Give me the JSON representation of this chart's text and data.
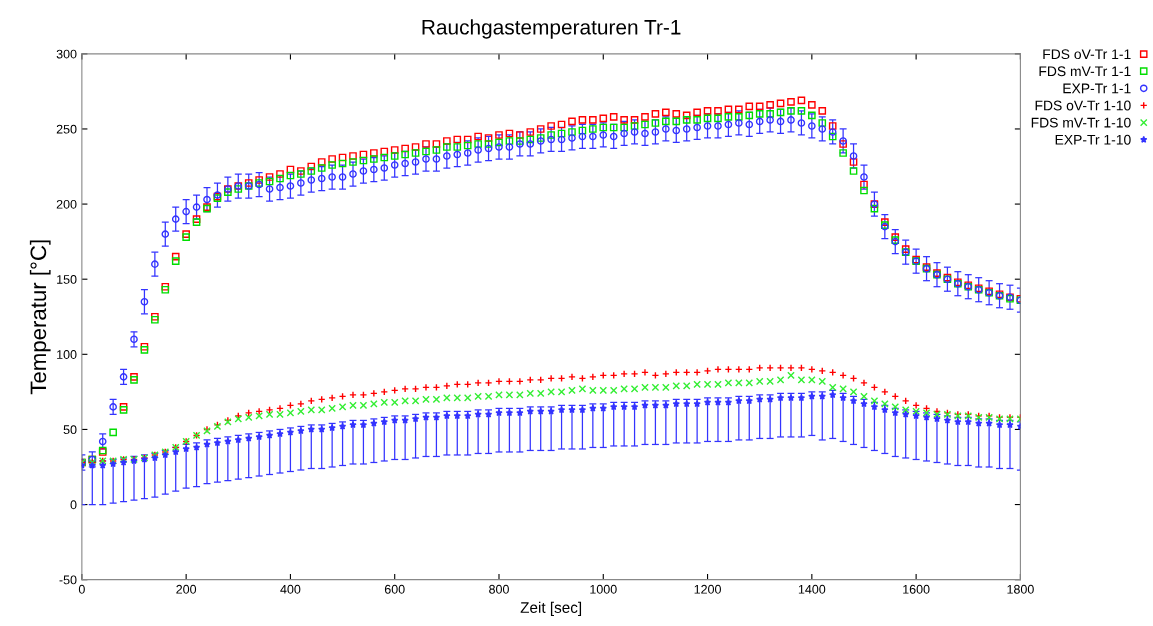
{
  "chart_data": {
    "type": "scatter",
    "title": "Rauchgastemperaturen Tr-1",
    "xlabel": "Zeit [sec]",
    "ylabel": "Temperatur [°C]",
    "x": [
      0,
      20,
      40,
      60,
      80,
      100,
      120,
      140,
      160,
      180,
      200,
      220,
      240,
      260,
      280,
      300,
      320,
      340,
      360,
      380,
      400,
      420,
      440,
      460,
      480,
      500,
      520,
      540,
      560,
      580,
      600,
      620,
      640,
      660,
      680,
      700,
      720,
      740,
      760,
      780,
      800,
      820,
      840,
      860,
      880,
      900,
      920,
      940,
      960,
      980,
      1000,
      1020,
      1040,
      1060,
      1080,
      1100,
      1120,
      1140,
      1160,
      1180,
      1200,
      1220,
      1240,
      1260,
      1280,
      1300,
      1320,
      1340,
      1360,
      1380,
      1400,
      1420,
      1440,
      1460,
      1480,
      1500,
      1520,
      1540,
      1560,
      1580,
      1600,
      1620,
      1640,
      1660,
      1680,
      1700,
      1720,
      1740,
      1760,
      1780,
      1800
    ],
    "xlim": [
      0,
      1800
    ],
    "xticks": [
      0,
      200,
      400,
      600,
      800,
      1000,
      1200,
      1400,
      1600,
      1800
    ],
    "ylim": [
      -50,
      300
    ],
    "yticks": [
      -50,
      0,
      50,
      100,
      150,
      200,
      250,
      300
    ],
    "grid": false,
    "legend": "top right",
    "series": [
      {
        "name": "FDS oV-Tr 1-1",
        "color": "#ff0000",
        "marker": "square",
        "values": [
          28,
          30,
          35,
          null,
          65,
          85,
          105,
          125,
          145,
          165,
          180,
          190,
          198,
          205,
          210,
          212,
          214,
          216,
          218,
          220,
          223,
          222,
          225,
          228,
          230,
          231,
          232,
          233,
          234,
          235,
          236,
          237,
          238,
          240,
          240,
          242,
          243,
          243,
          245,
          244,
          246,
          247,
          246,
          248,
          250,
          252,
          253,
          255,
          256,
          256,
          257,
          258,
          256,
          256,
          258,
          260,
          261,
          260,
          259,
          261,
          262,
          262,
          263,
          263,
          265,
          265,
          266,
          267,
          268,
          269,
          266,
          262,
          252,
          240,
          228,
          213,
          200,
          188,
          178,
          170,
          163,
          158,
          154,
          151,
          148,
          146,
          144,
          142,
          140,
          138,
          137
        ]
      },
      {
        "name": "FDS mV-Tr 1-1",
        "color": "#00dd00",
        "marker": "square",
        "values": [
          28,
          30,
          36,
          48,
          63,
          83,
          103,
          123,
          143,
          162,
          178,
          188,
          197,
          204,
          208,
          210,
          212,
          214,
          215,
          217,
          219,
          220,
          222,
          224,
          226,
          227,
          228,
          229,
          230,
          231,
          232,
          233,
          234,
          235,
          236,
          238,
          238,
          239,
          240,
          240,
          241,
          242,
          242,
          243,
          244,
          246,
          247,
          248,
          249,
          250,
          251,
          251,
          251,
          252,
          253,
          254,
          255,
          255,
          256,
          256,
          257,
          257,
          258,
          258,
          259,
          260,
          260,
          261,
          262,
          262,
          259,
          254,
          245,
          234,
          222,
          209,
          197,
          186,
          176,
          168,
          162,
          157,
          153,
          150,
          147,
          145,
          143,
          141,
          139,
          137,
          136
        ]
      },
      {
        "name": "EXP-Tr 1-1",
        "color": "#3333ff",
        "marker": "circle",
        "values": [
          28,
          30,
          42,
          65,
          85,
          110,
          135,
          160,
          180,
          190,
          195,
          198,
          203,
          206,
          210,
          212,
          212,
          213,
          210,
          211,
          212,
          214,
          216,
          217,
          218,
          218,
          220,
          222,
          223,
          224,
          226,
          227,
          228,
          230,
          230,
          232,
          233,
          234,
          236,
          237,
          238,
          238,
          240,
          240,
          242,
          243,
          243,
          244,
          245,
          245,
          246,
          245,
          247,
          248,
          247,
          248,
          250,
          249,
          250,
          251,
          252,
          252,
          253,
          254,
          253,
          255,
          256,
          255,
          256,
          254,
          252,
          250,
          248,
          242,
          232,
          218,
          200,
          185,
          175,
          168,
          162,
          157,
          153,
          150,
          147,
          145,
          143,
          141,
          139,
          138,
          136
        ],
        "errors": [
          5,
          5,
          5,
          5,
          5,
          5,
          8,
          8,
          8,
          8,
          8,
          8,
          8,
          8,
          8,
          8,
          8,
          8,
          8,
          8,
          8,
          8,
          8,
          8,
          8,
          8,
          8,
          8,
          8,
          8,
          8,
          8,
          8,
          8,
          8,
          8,
          8,
          8,
          8,
          8,
          8,
          8,
          8,
          8,
          8,
          8,
          8,
          8,
          8,
          8,
          8,
          8,
          8,
          8,
          8,
          8,
          8,
          8,
          8,
          8,
          8,
          8,
          8,
          8,
          8,
          8,
          8,
          8,
          8,
          8,
          8,
          8,
          8,
          8,
          8,
          8,
          8,
          8,
          8,
          8,
          8,
          8,
          8,
          8,
          8,
          8,
          8,
          8,
          8,
          8,
          8
        ]
      },
      {
        "name": "FDS oV-Tr 1-10",
        "color": "#ff0000",
        "marker": "plus",
        "values": [
          28,
          28,
          29,
          29,
          30,
          30,
          31,
          33,
          35,
          38,
          42,
          46,
          50,
          53,
          56,
          59,
          61,
          62,
          63,
          64,
          66,
          67,
          69,
          70,
          71,
          72,
          73,
          73,
          74,
          75,
          76,
          77,
          77,
          78,
          78,
          79,
          80,
          80,
          81,
          81,
          82,
          82,
          82,
          83,
          83,
          84,
          84,
          85,
          84,
          85,
          86,
          86,
          87,
          87,
          88,
          86,
          87,
          88,
          88,
          88,
          89,
          90,
          90,
          90,
          90,
          91,
          91,
          91,
          91,
          91,
          90,
          89,
          88,
          86,
          84,
          81,
          78,
          75,
          72,
          69,
          66,
          64,
          62,
          61,
          60,
          60,
          59,
          59,
          58,
          58,
          58
        ]
      },
      {
        "name": "FDS mV-Tr 1-10",
        "color": "#33ee33",
        "marker": "cross",
        "values": [
          28,
          28,
          29,
          29,
          30,
          30,
          31,
          33,
          35,
          38,
          42,
          46,
          49,
          52,
          55,
          57,
          58,
          59,
          60,
          60,
          61,
          62,
          63,
          63,
          64,
          65,
          66,
          66,
          67,
          68,
          68,
          69,
          69,
          70,
          70,
          71,
          71,
          71,
          72,
          72,
          73,
          73,
          73,
          74,
          74,
          75,
          75,
          76,
          77,
          76,
          76,
          76,
          77,
          77,
          78,
          78,
          78,
          79,
          79,
          80,
          80,
          80,
          81,
          81,
          81,
          82,
          82,
          83,
          86,
          83,
          83,
          82,
          78,
          77,
          75,
          72,
          69,
          67,
          65,
          63,
          62,
          61,
          60,
          60,
          59,
          59,
          58,
          58,
          57,
          57,
          57
        ]
      },
      {
        "name": "EXP-Tr 1-10",
        "color": "#3333ff",
        "marker": "star",
        "values": [
          26,
          26,
          26,
          27,
          28,
          29,
          30,
          31,
          33,
          35,
          37,
          38,
          40,
          41,
          42,
          43,
          44,
          45,
          46,
          47,
          48,
          49,
          50,
          50,
          51,
          52,
          53,
          53,
          54,
          55,
          56,
          56,
          57,
          58,
          58,
          59,
          59,
          59,
          60,
          60,
          61,
          61,
          61,
          62,
          62,
          62,
          63,
          63,
          63,
          64,
          64,
          65,
          65,
          65,
          66,
          66,
          66,
          67,
          67,
          67,
          68,
          68,
          68,
          69,
          69,
          70,
          70,
          71,
          71,
          71,
          72,
          72,
          73,
          71,
          69,
          67,
          65,
          63,
          61,
          60,
          59,
          58,
          57,
          56,
          55,
          55,
          54,
          54,
          53,
          53,
          52
        ],
        "errors": [
          [
            0,
            29
          ],
          [
            0,
            29
          ],
          [
            0,
            29
          ],
          [
            1,
            30
          ],
          [
            2,
            31
          ],
          [
            3,
            32
          ],
          [
            4,
            33
          ],
          [
            5,
            34
          ],
          [
            7,
            36
          ],
          [
            9,
            38
          ],
          [
            11,
            40
          ],
          [
            12,
            41
          ],
          [
            14,
            43
          ],
          [
            15,
            44
          ],
          [
            16,
            45
          ],
          [
            17,
            46
          ],
          [
            18,
            47
          ],
          [
            19,
            48
          ],
          [
            20,
            49
          ],
          [
            21,
            50
          ],
          [
            22,
            51
          ],
          [
            23,
            52
          ],
          [
            24,
            53
          ],
          [
            24,
            53
          ],
          [
            25,
            54
          ],
          [
            26,
            55
          ],
          [
            27,
            56
          ],
          [
            27,
            56
          ],
          [
            28,
            57
          ],
          [
            29,
            58
          ],
          [
            30,
            59
          ],
          [
            30,
            59
          ],
          [
            31,
            60
          ],
          [
            32,
            61
          ],
          [
            32,
            61
          ],
          [
            33,
            62
          ],
          [
            33,
            62
          ],
          [
            33,
            62
          ],
          [
            34,
            63
          ],
          [
            34,
            63
          ],
          [
            35,
            64
          ],
          [
            35,
            64
          ],
          [
            35,
            64
          ],
          [
            36,
            65
          ],
          [
            36,
            65
          ],
          [
            36,
            65
          ],
          [
            37,
            66
          ],
          [
            37,
            66
          ],
          [
            37,
            66
          ],
          [
            38,
            67
          ],
          [
            38,
            67
          ],
          [
            39,
            68
          ],
          [
            39,
            68
          ],
          [
            39,
            68
          ],
          [
            40,
            69
          ],
          [
            40,
            69
          ],
          [
            40,
            69
          ],
          [
            41,
            70
          ],
          [
            41,
            70
          ],
          [
            41,
            70
          ],
          [
            42,
            71
          ],
          [
            42,
            71
          ],
          [
            42,
            71
          ],
          [
            43,
            72
          ],
          [
            43,
            72
          ],
          [
            44,
            73
          ],
          [
            44,
            73
          ],
          [
            45,
            74
          ],
          [
            45,
            74
          ],
          [
            45,
            74
          ],
          [
            46,
            75
          ],
          [
            43,
            75
          ],
          [
            44,
            76
          ],
          [
            42,
            74
          ],
          [
            40,
            72
          ],
          [
            38,
            70
          ],
          [
            36,
            68
          ],
          [
            34,
            66
          ],
          [
            32,
            64
          ],
          [
            31,
            63
          ],
          [
            30,
            62
          ],
          [
            29,
            61
          ],
          [
            28,
            60
          ],
          [
            27,
            59
          ],
          [
            26,
            58
          ],
          [
            26,
            58
          ],
          [
            25,
            57
          ],
          [
            25,
            57
          ],
          [
            24,
            56
          ],
          [
            24,
            56
          ],
          [
            23,
            55
          ]
        ]
      }
    ]
  }
}
